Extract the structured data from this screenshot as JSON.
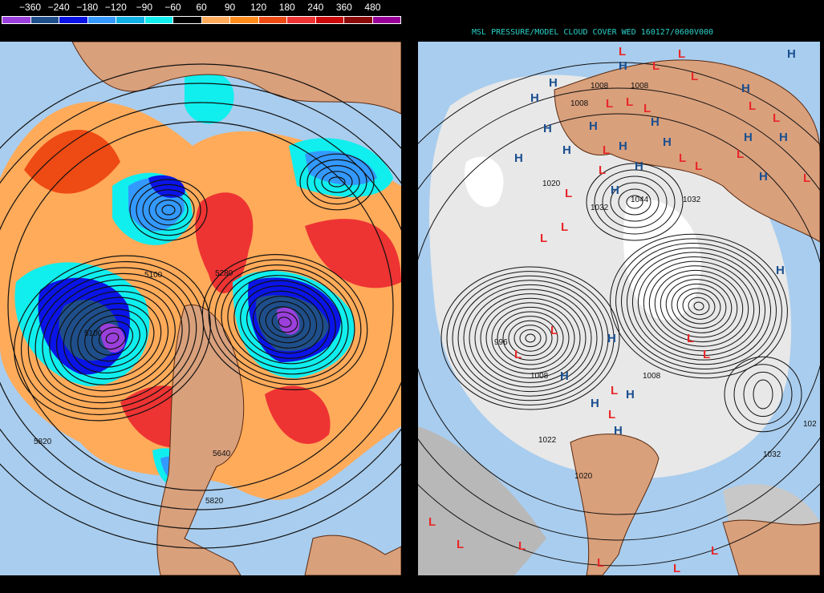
{
  "left_panel": {
    "legend": {
      "labels": [
        "−360",
        "−240",
        "−180",
        "−120",
        "−90",
        "−60",
        "60",
        "90",
        "120",
        "180",
        "240",
        "360",
        "480"
      ],
      "colors": [
        "#9b3fdc",
        "#1f4f8a",
        "#0a14e6",
        "#3399ff",
        "#0fb0e6",
        "#10eeee",
        "#000000",
        "#ffab5a",
        "#ff8c1a",
        "#ee4a14",
        "#ee3333",
        "#cc0a0a",
        "#8a0a0a",
        "#990099"
      ]
    },
    "contour_labels": [
      "5820",
      "5280",
      "5100",
      "5100",
      "5640",
      "5820"
    ],
    "colors": {
      "ocean": "#a9cdee",
      "land": "#d9a07c"
    }
  },
  "right_panel": {
    "title": "MSL PRESSURE/MODEL CLOUD COVER WED 160127/0600V000",
    "contour_labels": [
      "1008",
      "1008",
      "1008",
      "1020",
      "1032",
      "1044",
      "1032",
      "996",
      "1008",
      "1008",
      "1032",
      "1020",
      "1022",
      "102"
    ],
    "high_symbol": "H",
    "low_symbol": "L",
    "colors": {
      "high": "#1a4f8f",
      "low": "#e8282a",
      "cloud": "#e8e8e8",
      "ocean": "#a9cdee",
      "land": "#d9a07c"
    }
  }
}
